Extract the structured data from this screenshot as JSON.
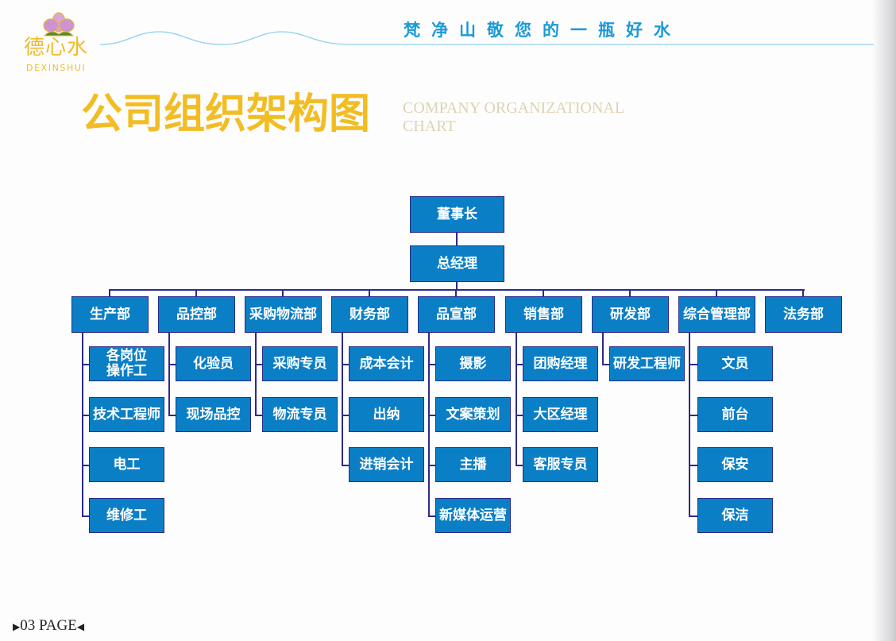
{
  "header": {
    "logo_cn": "德心水",
    "logo_en": "DEXINSHUI",
    "slogan": "梵净山敬您的一瓶好水"
  },
  "title": {
    "cn": "公司组织架构图",
    "en": "COMPANY ORGANIZATIONAL CHART"
  },
  "org": {
    "chairman": "董事长",
    "general_manager": "总经理",
    "departments": [
      {
        "name": "生产部",
        "children": [
          "各岗位\n操作工",
          "技术工程师",
          "电工",
          "维修工"
        ]
      },
      {
        "name": "品控部",
        "children": [
          "化验员",
          "现场品控"
        ]
      },
      {
        "name": "采购物流部",
        "children": [
          "采购专员",
          "物流专员"
        ]
      },
      {
        "name": "财务部",
        "children": [
          "成本会计",
          "出纳",
          "进销会计"
        ]
      },
      {
        "name": "品宣部",
        "children": [
          "摄影",
          "文案策划",
          "主播",
          "新媒体运营"
        ]
      },
      {
        "name": "销售部",
        "children": [
          "团购经理",
          "大区经理",
          "客服专员"
        ]
      },
      {
        "name": "研发部",
        "children": [
          "研发工程师"
        ]
      },
      {
        "name": "综合管理部",
        "children": [
          "文员",
          "前台",
          "保安",
          "保洁"
        ]
      },
      {
        "name": "法务部",
        "children": []
      }
    ]
  },
  "footer": {
    "page_label": "03 PAGE"
  },
  "colors": {
    "box": "#0b7fc6",
    "border": "#262b8c",
    "title": "#f2bd24",
    "slogan": "#1a9ad8"
  }
}
